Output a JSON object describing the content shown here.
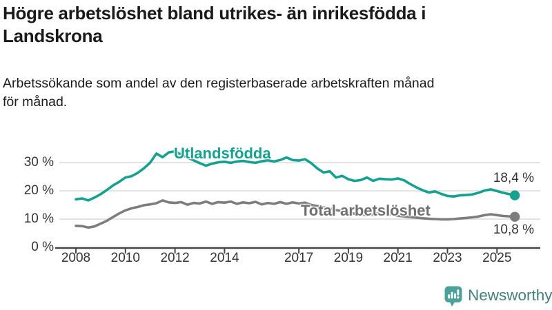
{
  "header": {
    "title": "Högre arbetslöshet bland utrikes- än inrikesfödda i\nLandskrona",
    "subtitle": "Arbetssökande som andel av den registerbaserade arbetskraften månad\nför månad."
  },
  "footer": {
    "brand": "Newsworthy"
  },
  "colors": {
    "accent_teal": "#16a08f",
    "series_gray": "#7d7d7d",
    "grid": "#dadada",
    "axis": "#454545",
    "tick_text": "#333333",
    "brand_icon": "#4ba29a",
    "brand_text": "#44807b"
  },
  "chart_data": {
    "type": "line",
    "title": "Högre arbetslöshet bland utrikes- än inrikesfödda i Landskrona",
    "subtitle": "Arbetssökande som andel av den registerbaserade arbetskraften månad för månad.",
    "xlabel": "",
    "ylabel": "",
    "ylim": [
      0,
      36
    ],
    "xlim": [
      2007.3,
      2026.3
    ],
    "grid": "horizontal",
    "legend_position": "inline-labels",
    "x": [
      2008.0,
      2008.25,
      2008.5,
      2008.75,
      2009.0,
      2009.25,
      2009.5,
      2009.75,
      2010.0,
      2010.25,
      2010.5,
      2010.75,
      2011.0,
      2011.25,
      2011.5,
      2011.75,
      2012.0,
      2012.25,
      2012.5,
      2012.75,
      2013.0,
      2013.25,
      2013.5,
      2013.75,
      2014.0,
      2014.25,
      2014.5,
      2014.75,
      2015.0,
      2015.25,
      2015.5,
      2015.75,
      2016.0,
      2016.25,
      2016.5,
      2016.75,
      2017.0,
      2017.25,
      2017.5,
      2017.75,
      2018.0,
      2018.25,
      2018.5,
      2018.75,
      2019.0,
      2019.25,
      2019.5,
      2019.75,
      2020.0,
      2020.25,
      2020.5,
      2020.75,
      2021.0,
      2021.25,
      2021.5,
      2021.75,
      2022.0,
      2022.25,
      2022.5,
      2022.75,
      2023.0,
      2023.25,
      2023.5,
      2023.75,
      2024.0,
      2024.25,
      2024.5,
      2024.75,
      2025.0,
      2025.25,
      2025.72
    ],
    "series": [
      {
        "name": "Utlandsfödda",
        "color": "#16a08f",
        "end_label": "18,4 %",
        "end_value": 18.4,
        "values": [
          17.0,
          17.3,
          16.6,
          17.6,
          18.8,
          20.3,
          21.9,
          23.2,
          24.7,
          25.2,
          26.4,
          28.0,
          30.0,
          33.2,
          31.9,
          33.6,
          34.0,
          32.8,
          31.8,
          30.8,
          29.8,
          28.9,
          29.6,
          30.1,
          30.3,
          29.9,
          30.4,
          30.6,
          30.2,
          29.9,
          30.5,
          30.8,
          30.4,
          30.9,
          31.8,
          30.9,
          30.7,
          31.2,
          29.8,
          27.9,
          26.5,
          26.9,
          24.7,
          25.3,
          24.1,
          23.5,
          23.8,
          24.7,
          23.5,
          24.3,
          24.1,
          24.0,
          24.4,
          23.7,
          22.4,
          21.2,
          20.2,
          19.4,
          19.8,
          18.9,
          18.2,
          18.0,
          18.4,
          18.5,
          18.7,
          19.3,
          20.1,
          20.5,
          19.9,
          19.3,
          18.4
        ]
      },
      {
        "name": "Total arbetslöshet",
        "color": "#7d7d7d",
        "end_label": "10,8 %",
        "end_value": 10.8,
        "values": [
          7.6,
          7.5,
          7.0,
          7.4,
          8.4,
          9.4,
          10.7,
          12.0,
          13.1,
          13.8,
          14.3,
          14.9,
          15.2,
          15.6,
          16.6,
          15.9,
          15.7,
          16.0,
          15.1,
          15.7,
          15.5,
          16.2,
          15.4,
          16.0,
          15.8,
          16.2,
          15.4,
          15.9,
          15.6,
          16.1,
          15.2,
          15.7,
          15.4,
          16.0,
          15.4,
          15.9,
          15.5,
          15.8,
          15.0,
          14.6,
          14.1,
          13.7,
          13.2,
          12.8,
          12.3,
          11.9,
          11.6,
          11.4,
          11.6,
          12.2,
          12.0,
          11.6,
          11.2,
          10.9,
          10.7,
          10.5,
          10.3,
          10.1,
          10.0,
          9.9,
          9.9,
          10.0,
          10.2,
          10.4,
          10.6,
          10.9,
          11.4,
          11.7,
          11.4,
          11.1,
          10.8
        ]
      }
    ],
    "yticks": [
      {
        "v": 0,
        "label": "0 %"
      },
      {
        "v": 10,
        "label": "10 %"
      },
      {
        "v": 20,
        "label": "20 %"
      },
      {
        "v": 30,
        "label": "30 %"
      }
    ],
    "xticks": [
      {
        "v": 2008,
        "label": "2008"
      },
      {
        "v": 2010,
        "label": "2010"
      },
      {
        "v": 2012,
        "label": "2012"
      },
      {
        "v": 2014,
        "label": "2014"
      },
      {
        "v": 2017,
        "label": "2017"
      },
      {
        "v": 2019,
        "label": "2019"
      },
      {
        "v": 2021,
        "label": "2021"
      },
      {
        "v": 2023,
        "label": "2023"
      },
      {
        "v": 2025,
        "label": "2025"
      }
    ]
  }
}
